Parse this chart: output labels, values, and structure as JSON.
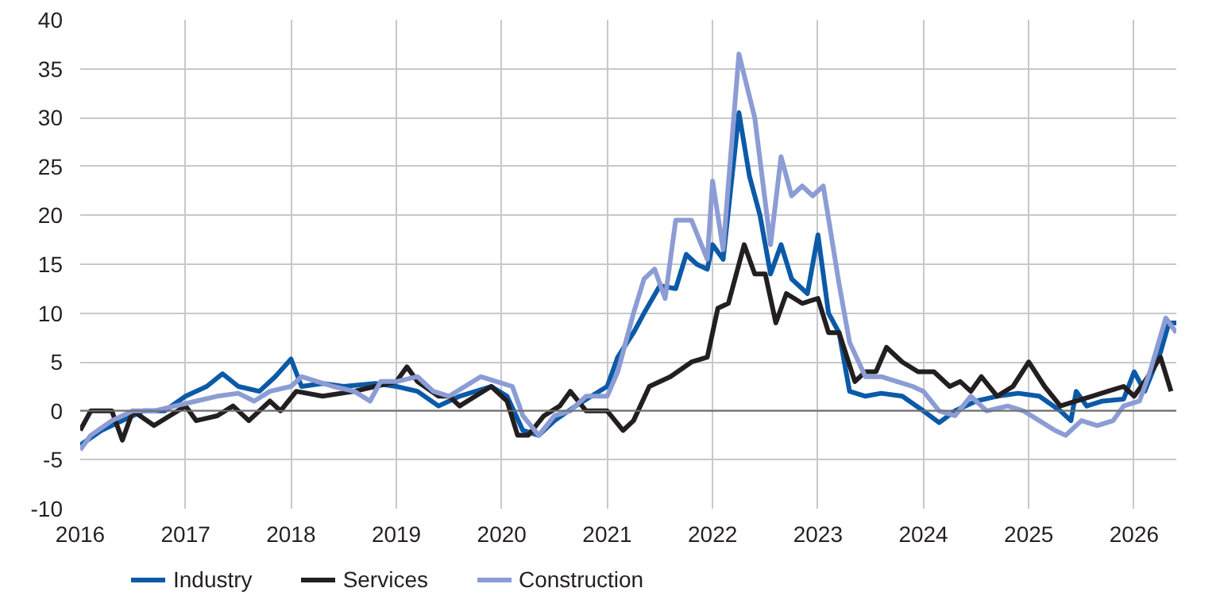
{
  "chart_data": {
    "type": "line",
    "series": [
      {
        "name": "Industry",
        "color": "#0b5aa8",
        "x": [
          2016.0,
          2016.2,
          2016.4,
          2016.6,
          2016.8,
          2017.0,
          2017.2,
          2017.35,
          2017.5,
          2017.7,
          2017.85,
          2018.0,
          2018.1,
          2018.3,
          2018.5,
          2018.8,
          2019.0,
          2019.2,
          2019.4,
          2019.6,
          2019.9,
          2020.05,
          2020.2,
          2020.35,
          2020.5,
          2020.7,
          2020.85,
          2021.0,
          2021.1,
          2021.25,
          2021.35,
          2021.5,
          2021.65,
          2021.75,
          2021.85,
          2021.95,
          2022.0,
          2022.1,
          2022.25,
          2022.35,
          2022.45,
          2022.55,
          2022.65,
          2022.75,
          2022.9,
          2023.0,
          2023.1,
          2023.2,
          2023.3,
          2023.45,
          2023.6,
          2023.8,
          2024.0,
          2024.15,
          2024.3,
          2024.5,
          2024.7,
          2024.9,
          2025.1,
          2025.3,
          2025.4,
          2025.45,
          2025.55,
          2025.7,
          2025.9,
          2026.0,
          2026.1,
          2026.25,
          2026.33,
          2026.4
        ],
        "values": [
          -3.5,
          -2,
          -1,
          0,
          0,
          1.5,
          2.5,
          3.8,
          2.5,
          2,
          3.5,
          5.3,
          2.5,
          2.8,
          2.5,
          2.8,
          2.5,
          2,
          0.5,
          1.5,
          2.5,
          1.5,
          -2,
          -2.5,
          -1,
          0.5,
          1.5,
          2.5,
          5.5,
          8,
          10,
          12.8,
          12.5,
          16,
          15,
          14.5,
          17,
          15.5,
          30.5,
          24,
          20,
          14,
          17,
          13.5,
          12,
          18,
          10,
          8,
          2,
          1.5,
          1.8,
          1.5,
          0,
          -1.2,
          0,
          1,
          1.5,
          1.8,
          1.5,
          0,
          -1,
          2,
          0.5,
          1,
          1.2,
          4,
          2,
          6,
          9,
          9
        ]
      },
      {
        "name": "Services",
        "color": "#231f20",
        "x": [
          2016.0,
          2016.1,
          2016.3,
          2016.4,
          2016.5,
          2016.7,
          2016.85,
          2017.0,
          2017.1,
          2017.3,
          2017.45,
          2017.6,
          2017.8,
          2017.9,
          2018.05,
          2018.3,
          2018.6,
          2018.8,
          2019.0,
          2019.1,
          2019.2,
          2019.4,
          2019.5,
          2019.6,
          2019.75,
          2019.9,
          2020.05,
          2020.15,
          2020.25,
          2020.4,
          2020.55,
          2020.65,
          2020.8,
          2021.0,
          2021.15,
          2021.25,
          2021.4,
          2021.6,
          2021.8,
          2021.95,
          2022.05,
          2022.15,
          2022.3,
          2022.4,
          2022.5,
          2022.6,
          2022.7,
          2022.85,
          2023.0,
          2023.1,
          2023.2,
          2023.35,
          2023.45,
          2023.55,
          2023.65,
          2023.8,
          2023.95,
          2024.1,
          2024.25,
          2024.35,
          2024.45,
          2024.55,
          2024.7,
          2024.85,
          2025.0,
          2025.15,
          2025.3,
          2025.45,
          2025.6,
          2025.75,
          2025.9,
          2026.0,
          2026.1,
          2026.25,
          2026.35
        ],
        "values": [
          -2,
          0,
          0,
          -3,
          0,
          -1.5,
          -0.5,
          0.5,
          -1,
          -0.5,
          0.5,
          -1,
          1,
          0,
          2,
          1.5,
          2,
          2.5,
          3,
          4.5,
          3,
          1.5,
          1.5,
          0.5,
          1.5,
          2.5,
          1,
          -2.5,
          -2.5,
          -0.5,
          0.5,
          2,
          0,
          0,
          -2,
          -1,
          2.5,
          3.5,
          5,
          5.5,
          10.5,
          11,
          17,
          14,
          14,
          9,
          12,
          11,
          11.5,
          8,
          8,
          3,
          4,
          4,
          6.5,
          5,
          4,
          4,
          2.5,
          3,
          2,
          3.5,
          1.5,
          2.5,
          5,
          2.5,
          0.5,
          1,
          1.5,
          2,
          2.5,
          1.5,
          3,
          5.5,
          2
        ]
      },
      {
        "name": "Construction",
        "color": "#8c9cd4",
        "x": [
          2016.0,
          2016.1,
          2016.3,
          2016.5,
          2016.7,
          2016.9,
          2017.1,
          2017.3,
          2017.5,
          2017.65,
          2017.8,
          2018.0,
          2018.1,
          2018.25,
          2018.4,
          2018.6,
          2018.75,
          2018.85,
          2019.0,
          2019.2,
          2019.35,
          2019.5,
          2019.65,
          2019.8,
          2019.95,
          2020.1,
          2020.2,
          2020.35,
          2020.5,
          2020.65,
          2020.8,
          2021.0,
          2021.1,
          2021.25,
          2021.35,
          2021.45,
          2021.55,
          2021.65,
          2021.8,
          2021.95,
          2022.0,
          2022.1,
          2022.25,
          2022.4,
          2022.55,
          2022.65,
          2022.75,
          2022.85,
          2022.95,
          2023.05,
          2023.2,
          2023.3,
          2023.45,
          2023.6,
          2023.75,
          2023.9,
          2024.0,
          2024.15,
          2024.3,
          2024.45,
          2024.6,
          2024.8,
          2024.95,
          2025.1,
          2025.25,
          2025.35,
          2025.5,
          2025.65,
          2025.8,
          2025.9,
          2026.05,
          2026.15,
          2026.3,
          2026.4
        ],
        "values": [
          -4,
          -2.5,
          -1,
          0,
          0,
          0.5,
          1,
          1.5,
          1.8,
          1,
          2,
          2.5,
          3.5,
          3,
          2.5,
          2,
          1,
          3,
          3,
          3.5,
          2,
          1.5,
          2.5,
          3.5,
          3,
          2.5,
          -0.5,
          -2.5,
          -0.5,
          0,
          1.5,
          1.5,
          4,
          10,
          13.5,
          14.5,
          11.5,
          19.5,
          19.5,
          15.5,
          23.5,
          16.5,
          36.5,
          30,
          17,
          26,
          22,
          23,
          22,
          23,
          13,
          7,
          3.5,
          3.5,
          3,
          2.5,
          2,
          0,
          -0.5,
          1.5,
          0,
          0.5,
          0,
          -1,
          -2,
          -2.5,
          -1,
          -1.5,
          -1,
          0.5,
          1,
          4,
          9.5,
          8
        ]
      }
    ],
    "xlim": [
      2016,
      2026.4
    ],
    "xticks": [
      2016,
      2017,
      2018,
      2019,
      2020,
      2021,
      2022,
      2023,
      2024,
      2025,
      2026
    ],
    "ylim": [
      -10,
      40
    ],
    "yticks": [
      -10,
      -5,
      0,
      5,
      10,
      15,
      20,
      25,
      30,
      35,
      40
    ],
    "ref_lines": [
      {
        "axis": "y",
        "value": 0,
        "color": "#6e6e6e"
      }
    ],
    "grid": true,
    "legend": "bottom",
    "marker": "none",
    "line_style": "solid"
  }
}
